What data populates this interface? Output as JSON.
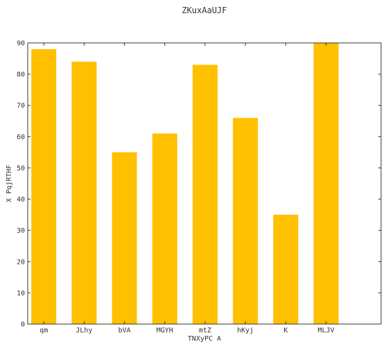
{
  "chart_data": {
    "type": "bar",
    "title": "ZKuxAaUJF",
    "xlabel": "TNXyPC A",
    "ylabel": "X PqjRTHF",
    "categories": [
      "qm",
      "JLhy",
      "bVA",
      "MGYH",
      "mtZ",
      "hKyj",
      "K",
      "MLJV"
    ],
    "values": [
      88,
      84,
      55,
      61,
      83,
      66,
      35,
      90
    ],
    "ylim": [
      0,
      90
    ],
    "yticks": [
      0,
      10,
      20,
      30,
      40,
      50,
      60,
      70,
      80,
      90
    ],
    "grid": false,
    "bar_color": "#ffc000",
    "axis_color": "#333333"
  }
}
